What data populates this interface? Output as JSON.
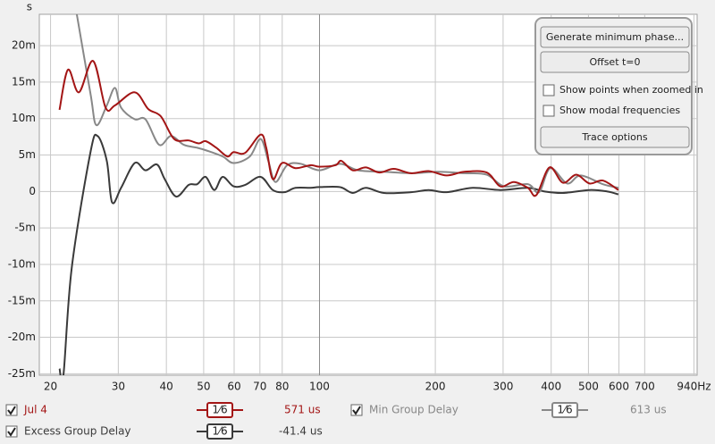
{
  "chart_data": {
    "type": "line",
    "y_unit": "s",
    "xscale": "log",
    "grid": true,
    "xlim": [
      18.7,
      958
    ],
    "ylim": [
      -0.0252,
      0.0243
    ],
    "xticks": [
      20,
      30,
      40,
      50,
      60,
      70,
      80,
      100,
      200,
      300,
      400,
      500,
      600,
      700,
      {
        "value": 940,
        "label": "940Hz"
      }
    ],
    "yticks": [
      {
        "value": 0.02,
        "label": "20m"
      },
      {
        "value": 0.015,
        "label": "15m"
      },
      {
        "value": 0.01,
        "label": "10m"
      },
      {
        "value": 0.005,
        "label": "5m"
      },
      0,
      {
        "value": -0.005,
        "label": "-5m"
      },
      {
        "value": -0.01,
        "label": "-10m"
      },
      {
        "value": -0.015,
        "label": "-15m"
      },
      {
        "value": -0.02,
        "label": "-20m"
      },
      {
        "value": -0.025,
        "label": "-25m"
      }
    ],
    "series": [
      {
        "name": "Jul 4",
        "color": "#a31515",
        "smoothing": "1⁄6",
        "legend_value": "571 us",
        "x": [
          21.1,
          22.2,
          23.7,
          25.8,
          27.8,
          29.4,
          33.1,
          35.9,
          38.7,
          41.9,
          45.7,
          48.6,
          50.6,
          53.9,
          57.6,
          59.8,
          64.1,
          70.3,
          72.7,
          75.6,
          79.9,
          86.6,
          94.7,
          100,
          110,
          114,
          122,
          132,
          143,
          156,
          173,
          192,
          214,
          238,
          272,
          295,
          320,
          348,
          366,
          396,
          429,
          465,
          503,
          545,
          598
        ],
        "values": [
          0.0112,
          0.0167,
          0.0136,
          0.0179,
          0.0115,
          0.0118,
          0.0136,
          0.0113,
          0.0103,
          0.0072,
          0.007,
          0.0066,
          0.0069,
          0.006,
          0.0048,
          0.0054,
          0.0053,
          0.0078,
          0.006,
          0.0017,
          0.0039,
          0.0032,
          0.0036,
          0.0034,
          0.0036,
          0.0042,
          0.0029,
          0.0033,
          0.0026,
          0.0031,
          0.0025,
          0.0028,
          0.0022,
          0.0027,
          0.0026,
          0.0007,
          0.0013,
          0.0005,
          -0.0005,
          0.0033,
          0.0012,
          0.0023,
          0.0011,
          0.0015,
          0.0002
        ]
      },
      {
        "name": "Min Group Delay",
        "color": "#888888",
        "smoothing": "1⁄6",
        "legend_value": "613 us",
        "x": [
          23.4,
          25.4,
          26.3,
          28.0,
          29.4,
          30.5,
          33.1,
          35.3,
          38.3,
          41.1,
          44.4,
          48.1,
          51.0,
          56.0,
          59.8,
          65.9,
          70.3,
          73.6,
          76.8,
          82.4,
          89.3,
          100,
          113,
          126,
          147,
          173,
          203,
          238,
          272,
          302,
          348,
          372,
          398,
          440,
          477,
          545,
          598
        ],
        "values": [
          0.0243,
          0.0134,
          0.0091,
          0.0118,
          0.0142,
          0.0115,
          0.0099,
          0.0099,
          0.0064,
          0.0076,
          0.0064,
          0.006,
          0.0056,
          0.0048,
          0.0039,
          0.0048,
          0.0072,
          0.0042,
          0.0013,
          0.0036,
          0.0038,
          0.0029,
          0.0038,
          0.0029,
          0.0027,
          0.0025,
          0.0027,
          0.0025,
          0.0023,
          0.0007,
          0.001,
          -0.0001,
          0.0032,
          0.0011,
          0.0022,
          0.001,
          0.0005
        ]
      },
      {
        "name": "Excess Group Delay",
        "color": "#3a3a3a",
        "smoothing": "1⁄6",
        "legend_value": "-41.4 us",
        "x": [
          21.1,
          21.6,
          22.7,
          25.4,
          26.5,
          28.0,
          28.9,
          30.5,
          33.1,
          35.3,
          37.8,
          39.6,
          42.4,
          45.7,
          48.1,
          50.6,
          53.3,
          56.0,
          59.8,
          64.1,
          70.3,
          75.6,
          81.0,
          86.6,
          94.7,
          100,
          113,
          122,
          132,
          147,
          173,
          192,
          214,
          250,
          295,
          348,
          385,
          429,
          503,
          560,
          598
        ],
        "values": [
          -0.0243,
          -0.0252,
          -0.0105,
          0.0054,
          0.0076,
          0.0042,
          -0.0015,
          0.0005,
          0.0039,
          0.0029,
          0.0037,
          0.0017,
          -0.0007,
          0.0009,
          0.001,
          0.002,
          0.0002,
          0.002,
          0.0007,
          0.0009,
          0.002,
          0.0002,
          -0.0001,
          0.0005,
          0.0005,
          0.0006,
          0.0006,
          -0.0002,
          0.0005,
          -0.0002,
          -0.0001,
          0.0002,
          -0.0001,
          0.0005,
          0.0002,
          0.0005,
          0,
          -0.0002,
          0.0002,
          0,
          -0.0004
        ]
      }
    ]
  },
  "controls": {
    "buttons": [
      "Generate minimum phase...",
      "Offset t=0",
      "Trace options"
    ],
    "checkboxes": [
      "Show points when zoomed in",
      "Show modal frequencies"
    ]
  }
}
